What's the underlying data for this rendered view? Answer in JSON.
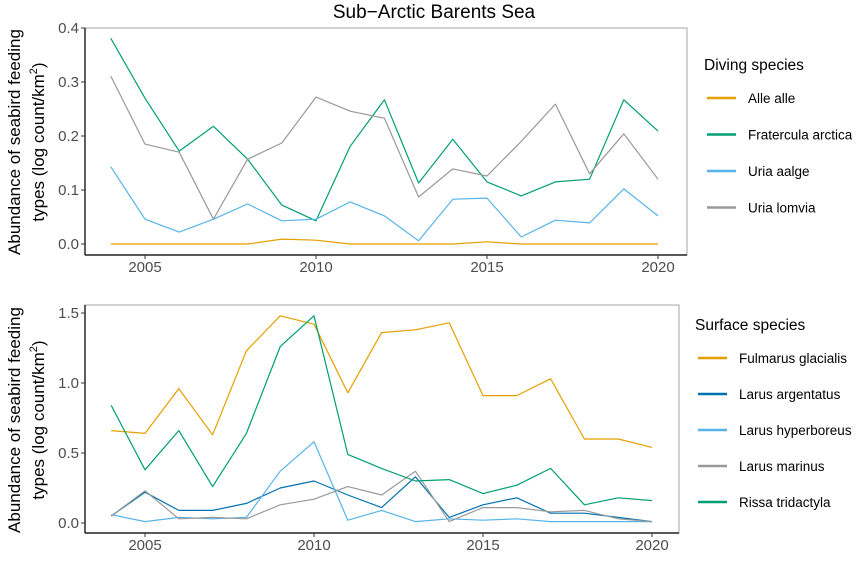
{
  "title": "Sub−Arctic Barents Sea",
  "chart_data": [
    {
      "type": "line",
      "panel": "top",
      "title": "Sub−Arctic Barents Sea",
      "xlabel": "",
      "ylabel_line1": "Abundance of seabird feeding",
      "ylabel_line2": "types (log count/km",
      "ylabel_sup": "2",
      "ylabel_close": ")",
      "ylim": [
        -0.02,
        0.4
      ],
      "xlim": [
        2002.8,
        2020.6
      ],
      "yticks": [
        0.0,
        0.1,
        0.2,
        0.3,
        0.4
      ],
      "ytick_labels": [
        "0.0",
        "0.1",
        "0.2",
        "0.3",
        "0.4"
      ],
      "xticks": [
        2005,
        2010,
        2015,
        2020
      ],
      "xtick_labels": [
        "2005",
        "2010",
        "2015",
        "2020"
      ],
      "grid": false,
      "legend_title": "Diving species",
      "legend_position": "right",
      "x": [
        2004,
        2005,
        2006,
        2007,
        2008,
        2009,
        2010,
        2011,
        2012,
        2013,
        2014,
        2015,
        2016,
        2017,
        2018,
        2019,
        2020
      ],
      "series": [
        {
          "name": "Alle alle",
          "color": "#E69F00",
          "values": [
            0.0,
            0.0,
            0.0,
            0.0,
            0.0,
            0.009,
            0.007,
            0.0,
            0.0,
            0.0,
            0.0,
            0.004,
            0.0,
            0.0,
            0.0,
            0.0,
            0.0
          ]
        },
        {
          "name": "Fratercula arctica",
          "color": "#009E73",
          "values": [
            0.381,
            0.27,
            0.172,
            0.218,
            0.157,
            0.072,
            0.043,
            0.181,
            0.267,
            0.113,
            0.194,
            0.115,
            0.089,
            0.115,
            0.12,
            0.267,
            0.209
          ]
        },
        {
          "name": "Uria aalge",
          "color": "#56B4E9",
          "values": [
            0.143,
            0.046,
            0.022,
            0.046,
            0.074,
            0.043,
            0.046,
            0.078,
            0.052,
            0.006,
            0.083,
            0.085,
            0.013,
            0.044,
            0.039,
            0.102,
            0.052
          ]
        },
        {
          "name": "Uria lomvia",
          "color": "#999999",
          "values": [
            0.311,
            0.185,
            0.17,
            0.046,
            0.157,
            0.187,
            0.272,
            0.246,
            0.233,
            0.087,
            0.139,
            0.126,
            0.19,
            0.259,
            0.13,
            0.204,
            0.12
          ]
        }
      ]
    },
    {
      "type": "line",
      "panel": "bottom",
      "title": "",
      "xlabel": "",
      "ylabel_line1": "Abundance of seabird feeding",
      "ylabel_line2": "types (log count/km",
      "ylabel_sup": "2",
      "ylabel_close": ")",
      "ylim": [
        -0.07,
        1.55
      ],
      "xlim": [
        2002.8,
        2021.6
      ],
      "yticks": [
        0.0,
        0.5,
        1.0,
        1.5
      ],
      "ytick_labels": [
        "0.0",
        "0.5",
        "1.0",
        "1.5"
      ],
      "xticks": [
        2005,
        2010,
        2015,
        2020
      ],
      "xtick_labels": [
        "2005",
        "2010",
        "2015",
        "2020"
      ],
      "grid": false,
      "legend_title": "Surface species",
      "legend_position": "right",
      "x": [
        2004,
        2005,
        2006,
        2007,
        2008,
        2009,
        2010,
        2011,
        2012,
        2013,
        2014,
        2015,
        2016,
        2017,
        2018,
        2019,
        2020
      ],
      "series": [
        {
          "name": "Fulmarus glacialis",
          "color": "#E69F00",
          "values": [
            0.66,
            0.64,
            0.96,
            0.63,
            1.23,
            1.48,
            1.42,
            0.93,
            1.36,
            1.38,
            1.43,
            0.91,
            0.91,
            1.03,
            0.6,
            0.6,
            0.54
          ]
        },
        {
          "name": "Larus argentatus",
          "color": "#0072B2",
          "values": [
            0.05,
            0.22,
            0.09,
            0.09,
            0.14,
            0.25,
            0.3,
            0.2,
            0.11,
            0.33,
            0.04,
            0.13,
            0.18,
            0.07,
            0.07,
            0.04,
            0.01
          ]
        },
        {
          "name": "Larus hyperboreus",
          "color": "#56B4E9",
          "values": [
            0.06,
            0.01,
            0.04,
            0.03,
            0.04,
            0.37,
            0.58,
            0.02,
            0.09,
            0.01,
            0.03,
            0.02,
            0.03,
            0.01,
            0.01,
            0.01,
            0.01
          ]
        },
        {
          "name": "Larus marinus",
          "color": "#999999",
          "values": [
            0.05,
            0.23,
            0.03,
            0.04,
            0.03,
            0.13,
            0.17,
            0.26,
            0.2,
            0.37,
            0.01,
            0.11,
            0.11,
            0.08,
            0.09,
            0.03,
            0.01
          ]
        },
        {
          "name": "Rissa tridactyla",
          "color": "#009E73",
          "values": [
            0.84,
            0.38,
            0.66,
            0.26,
            0.64,
            1.26,
            1.48,
            0.49,
            0.39,
            0.3,
            0.31,
            0.21,
            0.27,
            0.39,
            0.13,
            0.18,
            0.16
          ]
        }
      ]
    }
  ]
}
